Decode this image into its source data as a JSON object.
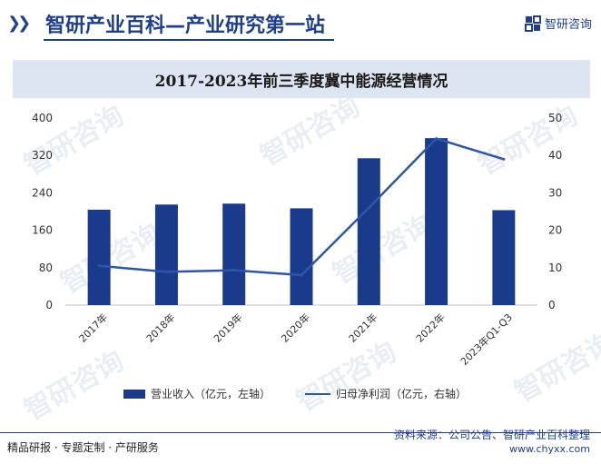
{
  "header": {
    "title": "智研产业百科—产业研究第一站",
    "brand_name": "智研咨询"
  },
  "watermark": "智研咨询",
  "chart_data": {
    "type": "bar",
    "title": "2017-2023年前三季度冀中能源经营情况",
    "categories": [
      "2017年",
      "2018年",
      "2019年",
      "2020年",
      "2021年",
      "2022年",
      "2023年Q1-Q3"
    ],
    "series": [
      {
        "name": "营业收入（亿元，左轴）",
        "type": "bar",
        "axis": "left",
        "values": [
          204,
          215,
          217,
          207,
          314,
          357,
          203
        ],
        "color": "#1a3a8c"
      },
      {
        "name": "归母净利润（亿元，右轴）",
        "type": "line",
        "axis": "right",
        "values": [
          10.5,
          8.9,
          9.3,
          8.0,
          26.0,
          44.5,
          39.0
        ],
        "color": "#2f56a6"
      }
    ],
    "ylim_left": [
      0,
      400
    ],
    "yticks_left": [
      0,
      80,
      160,
      240,
      320,
      400
    ],
    "ylim_right": [
      0,
      50
    ],
    "yticks_right": [
      0,
      10,
      20,
      30,
      40,
      50
    ],
    "grid": false,
    "legend": "bottom"
  },
  "footer": {
    "left": "精品研报 · 专题定制 · 产研服务",
    "source": "资料来源：公司公告、智研产业百科整理",
    "url": "www.chyxx.com"
  }
}
